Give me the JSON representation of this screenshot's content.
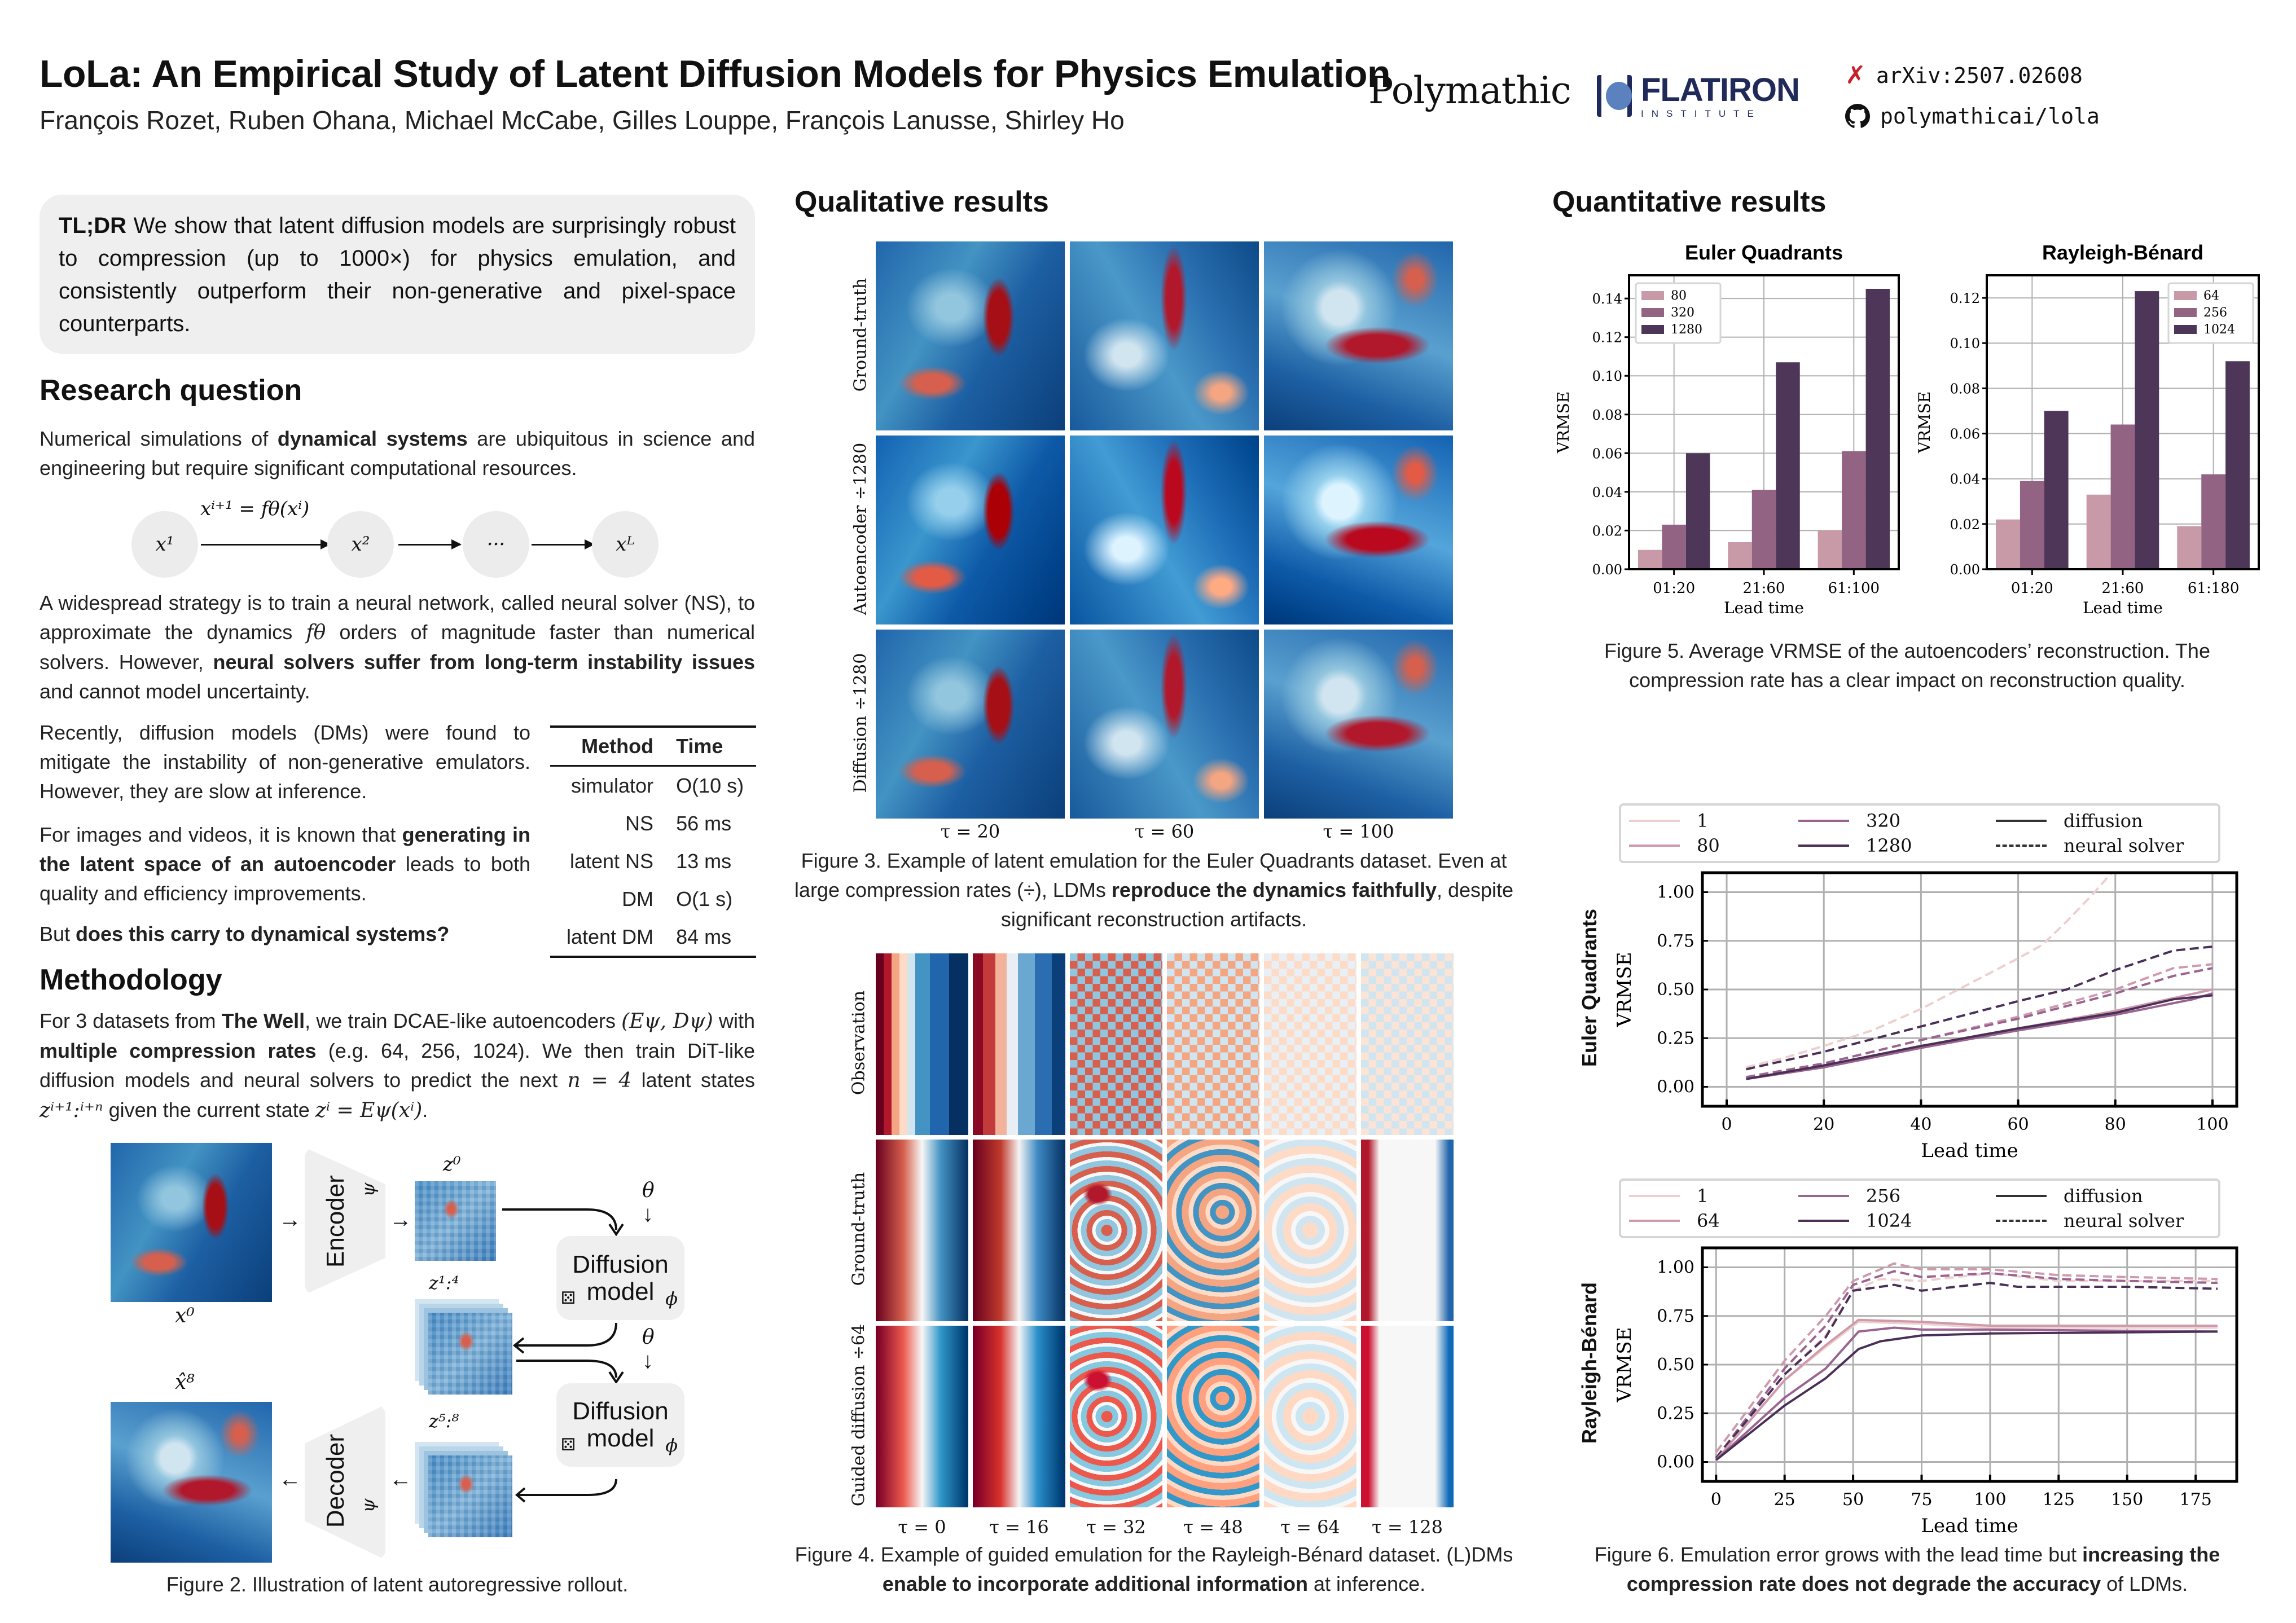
{
  "header": {
    "title": "LoLa: An Empirical Study of Latent Diffusion Models for Physics Emulation",
    "authors": "François Rozet, Ruben Ohana, Michael McCabe, Gilles Louppe, François Lanusse, Shirley Ho",
    "logo_polymathic": "Polymathic",
    "logo_flatiron": "FLATIRON",
    "logo_flatiron_sub": "INSTITUTE",
    "arxiv": "arXiv:2507.02608",
    "github": "polymathicai/lola",
    "arxiv_icon": "arxiv-x-icon",
    "github_icon": "github-icon",
    "qr_icon": "qr-code"
  },
  "tldr": [
    {
      "t": "TL;DR",
      "b": true
    },
    {
      "t": " We show that latent diffusion models are surprisingly robust to compression (up to 1000×) for physics emulation, and consistently outperform their non-generative and pixel-space counterparts."
    }
  ],
  "research": {
    "heading": "Research question",
    "p1": [
      {
        "t": "Numerical simulations of "
      },
      {
        "t": "dynamical systems",
        "b": true
      },
      {
        "t": " are ubiquitous in science and engineering but require significant computational resources."
      }
    ],
    "diagram": {
      "formula": "xⁱ⁺¹ = fθ(xⁱ)",
      "nodes": [
        "x¹",
        "x²",
        "···",
        "xᴸ"
      ]
    },
    "p2": [
      {
        "t": "A widespread strategy is to train a neural network, called neural solver (NS), to approximate the dynamics "
      },
      {
        "t": "fθ",
        "m": true
      },
      {
        "t": " orders of magnitude faster than numerical solvers. However, "
      },
      {
        "t": "neural solvers suffer from long-term instability issues",
        "b": true
      },
      {
        "t": " and cannot model uncertainty."
      }
    ],
    "p3": [
      {
        "t": "Recently, diffusion models (DMs) were found to mitigate the instability of non-generative emulators. However, they are slow at inference."
      }
    ],
    "p4": [
      {
        "t": "For images and videos, it is known that "
      },
      {
        "t": "generating in the latent space of an autoencoder",
        "b": true
      },
      {
        "t": " leads to both quality and efficiency improvements."
      }
    ],
    "p5": [
      {
        "t": "But "
      },
      {
        "t": "does this carry to dynamical systems?",
        "b": true
      }
    ],
    "table": {
      "headers": [
        "Method",
        "Time"
      ],
      "rows": [
        [
          "simulator",
          "O(10 s)"
        ],
        [
          "NS",
          "56 ms"
        ],
        [
          "latent NS",
          "13 ms"
        ],
        [
          "DM",
          "O(1 s)"
        ],
        [
          "latent DM",
          "84 ms"
        ]
      ]
    }
  },
  "methodology": {
    "heading": "Methodology",
    "p": [
      {
        "t": "For 3 datasets from "
      },
      {
        "t": "The Well",
        "b": true
      },
      {
        "t": ", we train DCAE-like autoencoders "
      },
      {
        "t": "(Eψ, Dψ)",
        "m": true
      },
      {
        "t": " with "
      },
      {
        "t": "multiple compression rates",
        "b": true
      },
      {
        "t": " (e.g. 64, 256, 1024). We then train DiT-like diffusion models and neural solvers to predict the next "
      },
      {
        "t": "n = 4",
        "m": true
      },
      {
        "t": " latent states "
      },
      {
        "t": "zⁱ⁺¹:ⁱ⁺ⁿ",
        "m": true
      },
      {
        "t": " given the current state "
      },
      {
        "t": "zⁱ = Eψ(xⁱ)",
        "m": true
      },
      {
        "t": "."
      }
    ],
    "figure2": {
      "x0": "x⁰",
      "xhat8": "x̂⁸",
      "encoder": "Encoder",
      "decoder": "Decoder",
      "psi": "ψ",
      "z0": "z⁰",
      "z14": "z¹:⁴",
      "z58": "z⁵:⁸",
      "theta": "θ",
      "phi": "ϕ",
      "diffusion_line1": "Diffusion",
      "diffusion_line2": "model",
      "dice_icon": "dice-icon",
      "caption": "Figure 2. Illustration of latent autoregressive rollout."
    }
  },
  "qualitative": {
    "heading": "Qualitative results",
    "fig3": {
      "row_labels": [
        "Ground-truth",
        "Autoencoder ÷1280",
        "Diffusion ÷1280"
      ],
      "col_labels": [
        "τ = 20",
        "τ = 60",
        "τ = 100"
      ],
      "caption": [
        {
          "t": "Figure 3. Example of latent emulation for the Euler Quadrants dataset. Even at large compression rates (÷), LDMs "
        },
        {
          "t": "reproduce the dynamics faithfully",
          "b": true
        },
        {
          "t": ", despite significant reconstruction artifacts."
        }
      ]
    },
    "fig4": {
      "row_labels": [
        "Observation",
        "Ground-truth",
        "Guided diffusion ÷64"
      ],
      "col_labels": [
        "τ = 0",
        "τ = 16",
        "τ = 32",
        "τ = 48",
        "τ = 64",
        "τ = 128"
      ],
      "caption": [
        {
          "t": "Figure 4. Example of guided emulation for the Rayleigh-Bénard dataset. (L)DMs "
        },
        {
          "t": "enable to incorporate additional information",
          "b": true
        },
        {
          "t": " at inference."
        }
      ]
    },
    "colormap": {
      "low": "#053061",
      "mid": "#f7f7f7",
      "high": "#67001f"
    }
  },
  "quantitative": {
    "heading": "Quantitative results",
    "fig5_caption": "Figure 5. Average VRMSE of the autoencoders’ reconstruction. The compression rate has a clear impact on reconstruction quality.",
    "fig6_row_labels": [
      "Euler Quadrants",
      "Rayleigh-Bénard"
    ],
    "fig6_caption": [
      {
        "t": "Figure 6. Emulation error grows with the lead time but "
      },
      {
        "t": "increasing the compression rate does not degrade the accuracy",
        "b": true
      },
      {
        "t": " of LDMs."
      }
    ],
    "fig6_legend_style": {
      "diffusion": "diffusion",
      "neural_solver": "neural solver"
    }
  },
  "chart_data": [
    {
      "type": "bar",
      "title": "Euler Quadrants",
      "xlabel": "Lead time",
      "ylabel": "VRMSE",
      "categories": [
        "01:20",
        "21:60",
        "61:100"
      ],
      "ylim": [
        0,
        0.152
      ],
      "yticks": [
        "0.00",
        "0.02",
        "0.04",
        "0.06",
        "0.08",
        "0.10",
        "0.12",
        "0.14"
      ],
      "grid": true,
      "legend": "top-left",
      "series": [
        {
          "name": "80",
          "color": "#c899a6",
          "values": [
            0.01,
            0.014,
            0.02
          ]
        },
        {
          "name": "320",
          "color": "#936383",
          "values": [
            0.023,
            0.041,
            0.061
          ]
        },
        {
          "name": "1280",
          "color": "#4e3659",
          "values": [
            0.06,
            0.107,
            0.145
          ]
        }
      ]
    },
    {
      "type": "bar",
      "title": "Rayleigh-Bénard",
      "xlabel": "Lead time",
      "ylabel": "VRMSE",
      "categories": [
        "01:20",
        "21:60",
        "61:180"
      ],
      "ylim": [
        0,
        0.13
      ],
      "yticks": [
        "0.00",
        "0.02",
        "0.04",
        "0.06",
        "0.08",
        "0.10",
        "0.12"
      ],
      "grid": true,
      "legend": "top-right",
      "series": [
        {
          "name": "64",
          "color": "#c899a6",
          "values": [
            0.022,
            0.033,
            0.019
          ]
        },
        {
          "name": "256",
          "color": "#936383",
          "values": [
            0.039,
            0.064,
            0.042
          ]
        },
        {
          "name": "1024",
          "color": "#4e3659",
          "values": [
            0.07,
            0.123,
            0.092
          ]
        }
      ]
    },
    {
      "type": "line",
      "ylabel": "VRMSE",
      "xlabel": "Lead time",
      "xlim": [
        -5,
        105
      ],
      "ylim": [
        -0.1,
        1.1
      ],
      "xticks": [
        "0",
        "20",
        "40",
        "60",
        "80",
        "100"
      ],
      "yticks": [
        "0.00",
        "0.25",
        "0.50",
        "0.75",
        "1.00"
      ],
      "grid": true,
      "legend": "top",
      "legend_names": [
        "1",
        "80",
        "320",
        "1280"
      ],
      "colors": [
        "#eecfcf",
        "#cf9aab",
        "#9a6390",
        "#4a2f57"
      ],
      "series": [
        {
          "rate": "1",
          "kind": "neural solver",
          "x": [
            4,
            12,
            20,
            30,
            40,
            50,
            60,
            65,
            70,
            75,
            80
          ],
          "y": [
            0.1,
            0.15,
            0.21,
            0.29,
            0.4,
            0.53,
            0.66,
            0.73,
            0.85,
            0.98,
            1.12
          ]
        },
        {
          "rate": "80",
          "kind": "neural solver",
          "x": [
            4,
            20,
            40,
            60,
            80,
            92,
            100
          ],
          "y": [
            0.05,
            0.12,
            0.24,
            0.36,
            0.5,
            0.61,
            0.63
          ]
        },
        {
          "rate": "320",
          "kind": "neural solver",
          "x": [
            4,
            20,
            40,
            60,
            80,
            92,
            100
          ],
          "y": [
            0.05,
            0.12,
            0.24,
            0.35,
            0.48,
            0.57,
            0.61
          ]
        },
        {
          "rate": "1280",
          "kind": "neural solver",
          "x": [
            4,
            20,
            40,
            60,
            70,
            80,
            92,
            100
          ],
          "y": [
            0.09,
            0.18,
            0.31,
            0.44,
            0.5,
            0.6,
            0.7,
            0.72
          ]
        },
        {
          "rate": "80",
          "kind": "diffusion",
          "x": [
            4,
            20,
            40,
            60,
            80,
            100
          ],
          "y": [
            0.04,
            0.11,
            0.21,
            0.3,
            0.39,
            0.5
          ]
        },
        {
          "rate": "320",
          "kind": "diffusion",
          "x": [
            4,
            20,
            40,
            60,
            80,
            96,
            100
          ],
          "y": [
            0.04,
            0.1,
            0.2,
            0.29,
            0.37,
            0.45,
            0.48
          ]
        },
        {
          "rate": "1280",
          "kind": "diffusion",
          "x": [
            4,
            20,
            40,
            60,
            80,
            92,
            100
          ],
          "y": [
            0.04,
            0.11,
            0.21,
            0.3,
            0.38,
            0.45,
            0.47
          ]
        }
      ]
    },
    {
      "type": "line",
      "ylabel": "VRMSE",
      "xlabel": "Lead time",
      "xlim": [
        -5,
        190
      ],
      "ylim": [
        -0.1,
        1.1
      ],
      "xticks": [
        "0",
        "25",
        "50",
        "75",
        "100",
        "125",
        "150",
        "175"
      ],
      "yticks": [
        "0.00",
        "0.25",
        "0.50",
        "0.75",
        "1.00"
      ],
      "grid": true,
      "legend": "top",
      "legend_names": [
        "1",
        "64",
        "256",
        "1024"
      ],
      "colors": [
        "#eecfcf",
        "#cf9aab",
        "#9a6390",
        "#4a2f57"
      ],
      "series": [
        {
          "rate": "1",
          "kind": "neural solver",
          "x": [
            0,
            25,
            40,
            50,
            60,
            75,
            100,
            125,
            150,
            183
          ],
          "y": [
            0.02,
            0.45,
            0.65,
            0.88,
            0.94,
            0.93,
            0.97,
            0.93,
            0.93,
            0.93
          ]
        },
        {
          "rate": "64",
          "kind": "neural solver",
          "x": [
            0,
            25,
            40,
            50,
            65,
            75,
            100,
            125,
            150,
            183
          ],
          "y": [
            0.05,
            0.52,
            0.75,
            0.93,
            1.02,
            0.99,
            0.99,
            0.96,
            0.95,
            0.94
          ]
        },
        {
          "rate": "256",
          "kind": "neural solver",
          "x": [
            0,
            25,
            40,
            50,
            65,
            75,
            100,
            125,
            150,
            183
          ],
          "y": [
            0.02,
            0.48,
            0.7,
            0.91,
            0.98,
            0.95,
            0.97,
            0.94,
            0.93,
            0.92
          ]
        },
        {
          "rate": "1024",
          "kind": "neural solver",
          "x": [
            0,
            25,
            40,
            50,
            65,
            75,
            100,
            110,
            150,
            183
          ],
          "y": [
            0.02,
            0.45,
            0.64,
            0.88,
            0.91,
            0.88,
            0.92,
            0.9,
            0.9,
            0.89
          ]
        },
        {
          "rate": "1",
          "kind": "diffusion",
          "x": [
            0,
            25,
            40,
            52,
            75,
            100,
            183
          ],
          "y": [
            0.01,
            0.42,
            0.59,
            0.72,
            0.71,
            0.69,
            0.69
          ]
        },
        {
          "rate": "64",
          "kind": "diffusion",
          "x": [
            0,
            25,
            40,
            52,
            75,
            100,
            183
          ],
          "y": [
            0.01,
            0.42,
            0.6,
            0.73,
            0.72,
            0.7,
            0.7
          ]
        },
        {
          "rate": "256",
          "kind": "diffusion",
          "x": [
            0,
            25,
            40,
            52,
            65,
            75,
            100,
            183
          ],
          "y": [
            0.01,
            0.33,
            0.48,
            0.67,
            0.69,
            0.68,
            0.68,
            0.67
          ]
        },
        {
          "rate": "1024",
          "kind": "diffusion",
          "x": [
            0,
            25,
            40,
            52,
            60,
            75,
            100,
            183
          ],
          "y": [
            0.01,
            0.29,
            0.43,
            0.58,
            0.62,
            0.65,
            0.66,
            0.67
          ]
        }
      ]
    }
  ]
}
